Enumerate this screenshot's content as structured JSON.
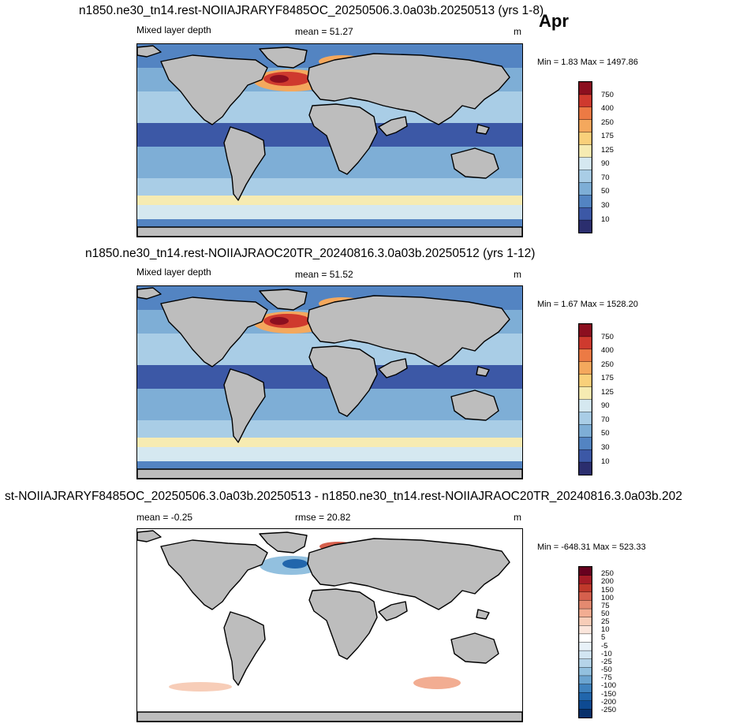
{
  "month": "Apr",
  "panels": [
    {
      "title": "n1850.ne30_tn14.rest-NOIIAJRARYF8485OC_20250506.3.0a03b.20250513 (yrs 1-8)",
      "variable": "Mixed layer depth",
      "stat": "mean =  51.27",
      "units": "m",
      "minmax": "Min =   1.83 Max = 1497.86",
      "legend_labels": [
        "750",
        "400",
        "250",
        "175",
        "125",
        "90",
        "70",
        "50",
        "30",
        "10"
      ]
    },
    {
      "title": "n1850.ne30_tn14.rest-NOIIAJRAOC20TR_20240816.3.0a03b.20250512 (yrs 1-12)",
      "variable": "Mixed layer depth",
      "stat": "mean =  51.52",
      "units": "m",
      "minmax": "Min =   1.67 Max = 1528.20",
      "legend_labels": [
        "750",
        "400",
        "250",
        "175",
        "125",
        "90",
        "70",
        "50",
        "30",
        "10"
      ]
    },
    {
      "title": "st-NOIIAJRARYF8485OC_20250506.3.0a03b.20250513 - n1850.ne30_tn14.rest-NOIIAJRAOC20TR_20240816.3.0a03b.202",
      "stat_left": "mean =  -0.25",
      "stat": "rmse =  20.82",
      "units": "m",
      "minmax": "Min = -648.31 Max = 523.33",
      "legend_labels": [
        "250",
        "200",
        "150",
        "100",
        "75",
        "50",
        "25",
        "10",
        "5",
        "-5",
        "-10",
        "-25",
        "-50",
        "-75",
        "-100",
        "-150",
        "-200",
        "-250"
      ]
    }
  ],
  "colors": {
    "mld_scale": [
      "#2b2e6e",
      "#3c58a6",
      "#5384c2",
      "#7eaed6",
      "#a9cde6",
      "#d5e8f0",
      "#f6ebb2",
      "#f9d07a",
      "#f4a85d",
      "#ec7a44",
      "#cf3a2e",
      "#8c0f1f"
    ],
    "diff_scale": [
      "#08306b",
      "#0e4a92",
      "#2166ac",
      "#3f82be",
      "#6ba4d0",
      "#92c0df",
      "#b5d4e9",
      "#d2e5f2",
      "#e8f1f8",
      "#ffffff",
      "#fbe6dc",
      "#f7cdb8",
      "#f2ad92",
      "#e48a70",
      "#d6604d",
      "#c0392b",
      "#a51b26",
      "#67001f"
    ],
    "land": "#bdbdbd",
    "frame": "#000000"
  }
}
